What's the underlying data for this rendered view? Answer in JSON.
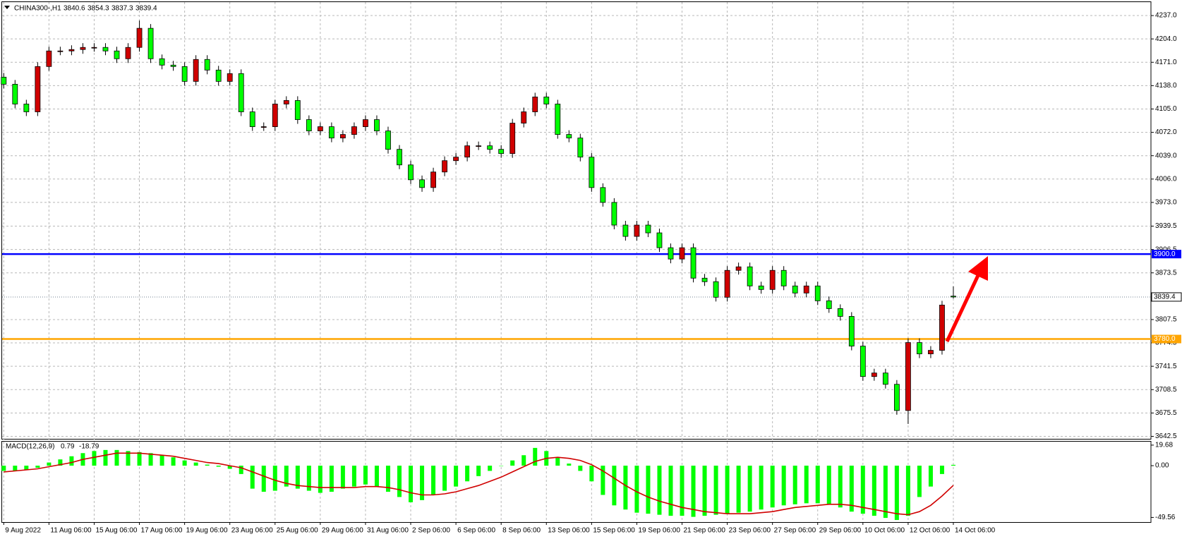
{
  "chart_data": [
    {
      "type": "candlestick",
      "title": "CHINA300-,H1",
      "categories": [
        "9 Aug 2022",
        null,
        null,
        null,
        "11 Aug 06:00",
        null,
        null,
        null,
        "15 Aug 06:00",
        null,
        null,
        null,
        "17 Aug 06:00",
        null,
        null,
        null,
        "19 Aug 06:00",
        null,
        null,
        null,
        "23 Aug 06:00",
        null,
        null,
        null,
        "25 Aug 06:00",
        null,
        null,
        null,
        "29 Aug 06:00",
        null,
        null,
        null,
        "31 Aug 06:00",
        null,
        null,
        null,
        "2 Sep 06:00",
        null,
        null,
        null,
        "6 Sep 06:00",
        null,
        null,
        null,
        "8 Sep 06:00",
        null,
        null,
        null,
        "13 Sep 06:00",
        null,
        null,
        null,
        "15 Sep 06:00",
        null,
        null,
        null,
        "19 Sep 06:00",
        null,
        null,
        null,
        "21 Sep 06:00",
        null,
        null,
        null,
        "23 Sep 06:00",
        null,
        null,
        null,
        "27 Sep 06:00",
        null,
        null,
        null,
        "29 Sep 06:00",
        null,
        null,
        null,
        "10 Oct 06:00",
        null,
        null,
        null,
        "12 Oct 06:00",
        null,
        null,
        null,
        "14 Oct 06:00"
      ],
      "open": [
        4150,
        4140,
        4112,
        4101,
        4165,
        4187,
        4187,
        4189,
        4192,
        4192,
        4187,
        4176,
        4192,
        4219,
        4176,
        4167,
        4165,
        4144,
        4175,
        4160,
        4144,
        4155,
        4101,
        4080,
        4080,
        4112,
        4117,
        4090,
        4074,
        4080,
        4064,
        4069,
        4080,
        4090,
        4074,
        4048,
        4026,
        4005,
        3994,
        4016,
        4032,
        4037,
        4053,
        4053,
        4048,
        4042,
        4085,
        4101,
        4122,
        4112,
        4069,
        4064,
        4037,
        3994,
        3973,
        3941,
        3925,
        3941,
        3930,
        3909,
        3893,
        3909,
        3866,
        3861,
        3839,
        3877,
        3882,
        3855,
        3850,
        3877,
        3855,
        3845,
        3855,
        3834,
        3823,
        3812,
        3770,
        3727,
        3732,
        3716,
        3679,
        3775,
        3759,
        3764,
        3840.6
      ],
      "high": [
        4156,
        4146,
        4118,
        4171,
        4193,
        4193,
        4195,
        4198,
        4198,
        4198,
        4193,
        4198,
        4230,
        4225,
        4182,
        4173,
        4171,
        4181,
        4181,
        4166,
        4161,
        4161,
        4107,
        4086,
        4118,
        4123,
        4123,
        4096,
        4086,
        4086,
        4075,
        4086,
        4096,
        4096,
        4080,
        4054,
        4032,
        4011,
        4022,
        4038,
        4043,
        4059,
        4059,
        4059,
        4054,
        4091,
        4107,
        4128,
        4128,
        4118,
        4075,
        4070,
        4043,
        4000,
        3979,
        3947,
        3947,
        3947,
        3936,
        3915,
        3915,
        3915,
        3872,
        3867,
        3883,
        3888,
        3888,
        3861,
        3883,
        3883,
        3861,
        3861,
        3861,
        3840,
        3829,
        3818,
        3776,
        3738,
        3738,
        3722,
        3781,
        3781,
        3770,
        3834,
        3854.3
      ],
      "low": [
        4134,
        4106,
        4095,
        4095,
        4159,
        4181,
        4181,
        4183,
        4186,
        4181,
        4170,
        4170,
        4186,
        4170,
        4161,
        4159,
        4138,
        4138,
        4154,
        4138,
        4138,
        4095,
        4074,
        4074,
        4074,
        4106,
        4084,
        4068,
        4068,
        4058,
        4058,
        4063,
        4074,
        4068,
        4042,
        4020,
        3999,
        3988,
        3988,
        4010,
        4026,
        4031,
        4047,
        4042,
        4036,
        4036,
        4079,
        4095,
        4106,
        4063,
        4058,
        4031,
        3988,
        3967,
        3935,
        3919,
        3919,
        3924,
        3903,
        3887,
        3887,
        3860,
        3855,
        3833,
        3833,
        3871,
        3849,
        3844,
        3844,
        3849,
        3839,
        3839,
        3828,
        3817,
        3806,
        3764,
        3721,
        3721,
        3710,
        3673,
        3660,
        3753,
        3753,
        3758,
        3837.3
      ],
      "close": [
        4140,
        4112,
        4101,
        4165,
        4187,
        4187,
        4189,
        4192,
        4192,
        4187,
        4176,
        4192,
        4219,
        4176,
        4167,
        4165,
        4144,
        4175,
        4160,
        4144,
        4155,
        4101,
        4080,
        4080,
        4112,
        4117,
        4090,
        4074,
        4080,
        4064,
        4069,
        4080,
        4090,
        4074,
        4048,
        4026,
        4005,
        3994,
        4016,
        4032,
        4037,
        4053,
        4053,
        4048,
        4042,
        4085,
        4101,
        4122,
        4112,
        4069,
        4064,
        4037,
        3994,
        3973,
        3941,
        3925,
        3941,
        3930,
        3909,
        3893,
        3909,
        3866,
        3861,
        3839,
        3877,
        3882,
        3855,
        3850,
        3877,
        3855,
        3845,
        3855,
        3834,
        3823,
        3812,
        3770,
        3727,
        3732,
        3716,
        3679,
        3775,
        3759,
        3764,
        3828,
        3839.4
      ],
      "up_color": "#d00000",
      "down_color": "#00ff00",
      "ylim": [
        3638,
        4256
      ],
      "yticks": [
        {
          "value": 4237,
          "label": "4237.0"
        },
        {
          "value": 4204,
          "label": "4204.0"
        },
        {
          "value": 4171,
          "label": "4171.0"
        },
        {
          "value": 4138,
          "label": "4138.0"
        },
        {
          "value": 4105,
          "label": "4105.0"
        },
        {
          "value": 4072,
          "label": "4072.0"
        },
        {
          "value": 4039,
          "label": "4039.0"
        },
        {
          "value": 4006,
          "label": "4006.0"
        },
        {
          "value": 3973,
          "label": "3973.0"
        },
        3939.5,
        3906.5,
        3873.5,
        3807.5,
        3774.5,
        3741.5,
        3708.5,
        3675.5,
        3642.5
      ],
      "grid": true,
      "levels": [
        {
          "value": 3900,
          "label": "3900.0",
          "color": "#0000ff"
        },
        {
          "value": 3780,
          "label": "3780.0",
          "color": "#ffa500"
        }
      ]
    },
    {
      "type": "macd",
      "title": "MACD(12,26,9)",
      "histogram": [
        -5,
        -5,
        -4,
        -2,
        3,
        6,
        9,
        12,
        14,
        15,
        15,
        14,
        13,
        12,
        10,
        8,
        5,
        3,
        1,
        -1,
        -3,
        -8,
        -22,
        -25,
        -24,
        -20,
        -22,
        -24,
        -26,
        -25,
        -22,
        -20,
        -18,
        -20,
        -25,
        -30,
        -35,
        -33,
        -28,
        -24,
        -20,
        -15,
        -10,
        -5,
        0,
        5,
        10,
        17,
        14,
        8,
        2,
        -5,
        -15,
        -28,
        -38,
        -42,
        -45,
        -46,
        -47,
        -48,
        -48,
        -49,
        -48,
        -47,
        -46,
        -45,
        -44,
        -42,
        -40,
        -38,
        -37,
        -36,
        -36,
        -37,
        -40,
        -44,
        -46,
        -48,
        -50,
        -52,
        -48,
        -30,
        -20,
        -8,
        0.79
      ],
      "signal": [
        -6,
        -5,
        -4,
        -3,
        -1,
        1,
        3,
        6,
        8,
        10,
        12,
        12,
        12,
        11,
        10,
        9,
        7,
        5,
        3,
        2,
        0,
        -2,
        -6,
        -10,
        -14,
        -17,
        -19,
        -20,
        -21,
        -21,
        -21,
        -21,
        -20,
        -20,
        -21,
        -23,
        -26,
        -28,
        -28,
        -27,
        -25,
        -22,
        -19,
        -15,
        -11,
        -6,
        -1,
        4,
        7,
        8,
        7,
        5,
        1,
        -5,
        -12,
        -19,
        -25,
        -30,
        -34,
        -37,
        -40,
        -42,
        -44,
        -45,
        -46,
        -46,
        -46,
        -45,
        -44,
        -42,
        -40,
        -39,
        -38,
        -37,
        -37,
        -38,
        -40,
        -42,
        -44,
        -46,
        -47,
        -44,
        -38,
        -29,
        -18.79
      ],
      "histogram_color": "#00ff00",
      "signal_color": "#d00000",
      "ylim": [
        -54,
        23
      ],
      "yticks": [
        19.68,
        {
          "value": 0,
          "label": "0.00"
        },
        -49.56
      ]
    }
  ]
}
